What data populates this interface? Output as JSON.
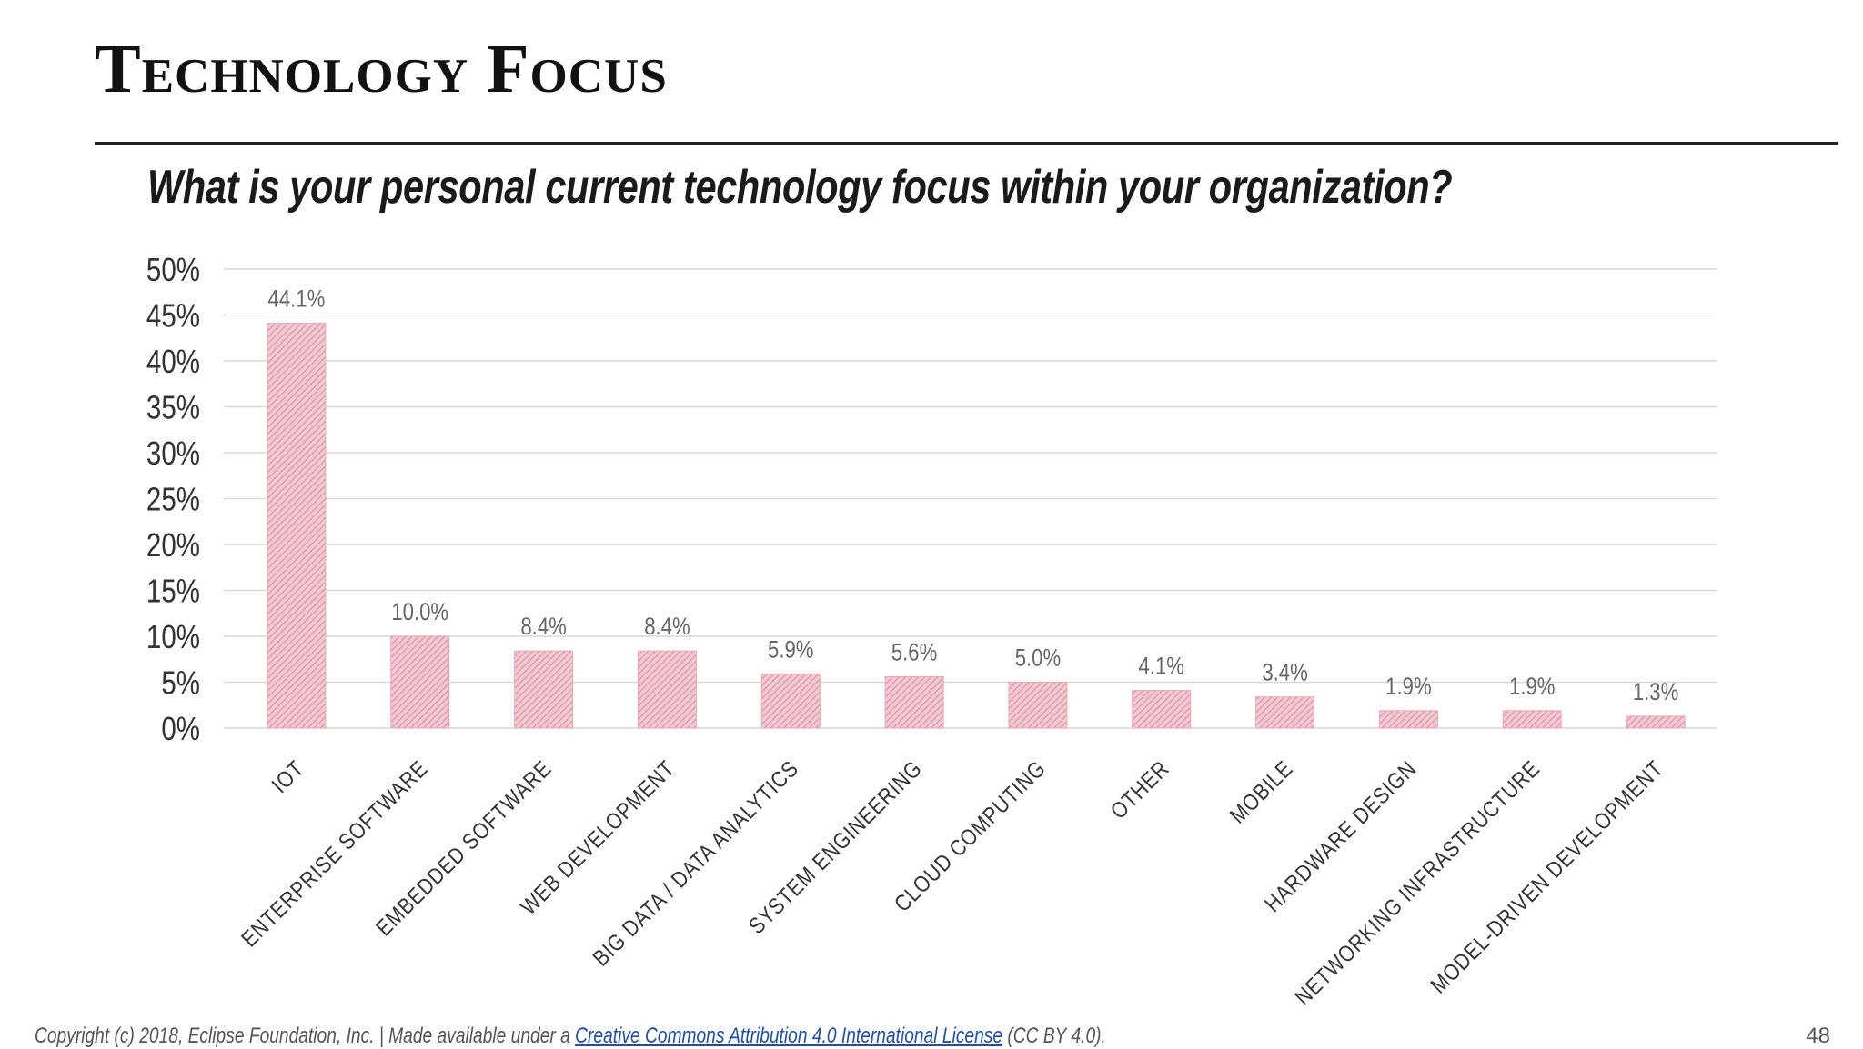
{
  "slide": {
    "title": "Technology Focus",
    "question": "What is your personal current technology focus within your organization?",
    "page_number": "48"
  },
  "footer": {
    "prefix": "Copyright (c) 2018, Eclipse Foundation, Inc. | Made available under a ",
    "link_text": "Creative Commons Attribution 4.0 International License",
    "suffix": " (CC BY 4.0)."
  },
  "chart_data": {
    "type": "bar",
    "categories": [
      "IOT",
      "ENTERPRISE SOFTWARE",
      "EMBEDDED SOFTWARE",
      "WEB DEVELOPMENT",
      "BIG DATA / DATA ANALYTICS",
      "SYSTEM ENGINEERING",
      "CLOUD COMPUTING",
      "OTHER",
      "MOBILE",
      "HARDWARE DESIGN",
      "NETWORKING INFRASTRUCTURE",
      "MODEL-DRIVEN DEVELOPMENT"
    ],
    "values": [
      44.1,
      10.0,
      8.4,
      8.4,
      5.9,
      5.6,
      5.0,
      4.1,
      3.4,
      1.9,
      1.9,
      1.3
    ],
    "data_labels": [
      "44.1%",
      "10.0%",
      "8.4%",
      "8.4%",
      "5.9%",
      "5.6%",
      "5.0%",
      "4.1%",
      "3.4%",
      "1.9%",
      "1.9%",
      "1.3%"
    ],
    "yticks": [
      "0%",
      "5%",
      "10%",
      "15%",
      "20%",
      "25%",
      "30%",
      "35%",
      "40%",
      "45%",
      "50%"
    ],
    "ylim": [
      0,
      50
    ],
    "title": "",
    "xlabel": "",
    "ylabel": "",
    "grid": true,
    "legend": "none",
    "bar_color": "#e8a6b4",
    "bar_pattern": "diagonal-hatch",
    "grid_color": "#d9d9d9",
    "label_color": "#666666"
  }
}
